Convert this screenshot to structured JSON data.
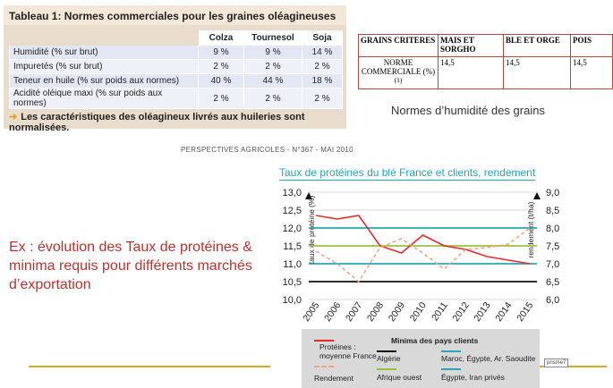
{
  "table1": {
    "title": "Tableau 1: Normes commerciales pour les graines oléagineuses",
    "columns": [
      "Colza",
      "Tournesol",
      "Soja"
    ],
    "rows": [
      {
        "label": "Humidité (% sur brut)",
        "values": [
          "9 %",
          "9 %",
          "14 %"
        ]
      },
      {
        "label": "Impuretés (% sur brut)",
        "values": [
          "2 %",
          "2 %",
          "2 %"
        ]
      },
      {
        "label": "Teneur en huile (% sur poids aux normes)",
        "values": [
          "40 %",
          "44 %",
          "18 %"
        ]
      },
      {
        "label": "Acidité oléique maxi (% sur poids aux normes)",
        "values": [
          "2 %",
          "2 %",
          "2 %"
        ]
      }
    ],
    "footnote": "Les caractéristiques des oléagineux livrés aux huileries sont normalisées.",
    "arrow_color": "#e8a02a"
  },
  "grains_table": {
    "headers": [
      "GRAINS CRITERES",
      "MAIS ET SORGHO",
      "BLE ET ORGE",
      "POIS"
    ],
    "row_label": "NORME COMMERCIALE (%)",
    "row_label_sup": "(1)",
    "values": [
      "14,5",
      "14,5",
      "14,5"
    ],
    "caption": "Normes d’humidité des grains"
  },
  "source_line": "PERSPECTIVES AGRICOLES - N°367 - MAI 2010",
  "example_text": "Ex : évolution des Taux de protéines & minima requis pour différents marchés d’exportation",
  "chart_data": {
    "type": "line",
    "title": "Taux de protéines du blé France et clients, rendement",
    "x": [
      "2005",
      "2006",
      "2007",
      "2008",
      "2009",
      "2010",
      "2011",
      "2012",
      "2013",
      "2014",
      "2015"
    ],
    "ylabel": "taux de protéine (%)",
    "y2label": "rendement (t/ha)",
    "ylim": [
      10.0,
      13.0
    ],
    "y2lim": [
      6.0,
      9.0
    ],
    "yticks": [
      "13,0",
      "12,5",
      "12,0",
      "11,5",
      "11,0",
      "10,5",
      "10,0"
    ],
    "y2ticks": [
      "9,0",
      "8,5",
      "8,0",
      "7,5",
      "7,0",
      "6,5",
      "6,0"
    ],
    "grid": true,
    "series": [
      {
        "name": "Protéines : moyenne France",
        "axis": "left",
        "style": "solid",
        "color": "#e52a2a",
        "values": [
          12.35,
          12.25,
          12.35,
          11.5,
          11.3,
          11.8,
          11.5,
          11.4,
          11.2,
          11.1,
          11.0
        ]
      },
      {
        "name": "Rendement",
        "axis": "right",
        "style": "dashed",
        "color": "#f0a58a",
        "values": [
          7.35,
          7.0,
          6.5,
          7.45,
          7.7,
          7.3,
          6.85,
          7.4,
          7.45,
          7.55,
          8.0
        ]
      }
    ],
    "thresholds": [
      {
        "name": "Algérie",
        "value": 10.5,
        "color": "#111111"
      },
      {
        "name": "Afrique ouest",
        "value": 11.5,
        "color": "#9ac23c"
      },
      {
        "name": "Maroc, Égypte, Ar. Saoudite",
        "value": 12.0,
        "color": "#2aa7b0"
      },
      {
        "name": "Égypte, Iran privés",
        "value": 11.0,
        "color": "#2aa7b0"
      }
    ],
    "legend_placement": "bottom",
    "legend": {
      "proteines": "Protéines :",
      "moyenne": "moyenne France",
      "rendement": "Rendement",
      "minima_title": "Minima des pays clients",
      "algerie": "Algérie",
      "afrique": "Afrique ouest",
      "maroc": "Maroc, Égypte, Ar. Saoudite",
      "egypte_iran": "Égypte, Iran privés"
    }
  },
  "prisme_label": "prisme7"
}
